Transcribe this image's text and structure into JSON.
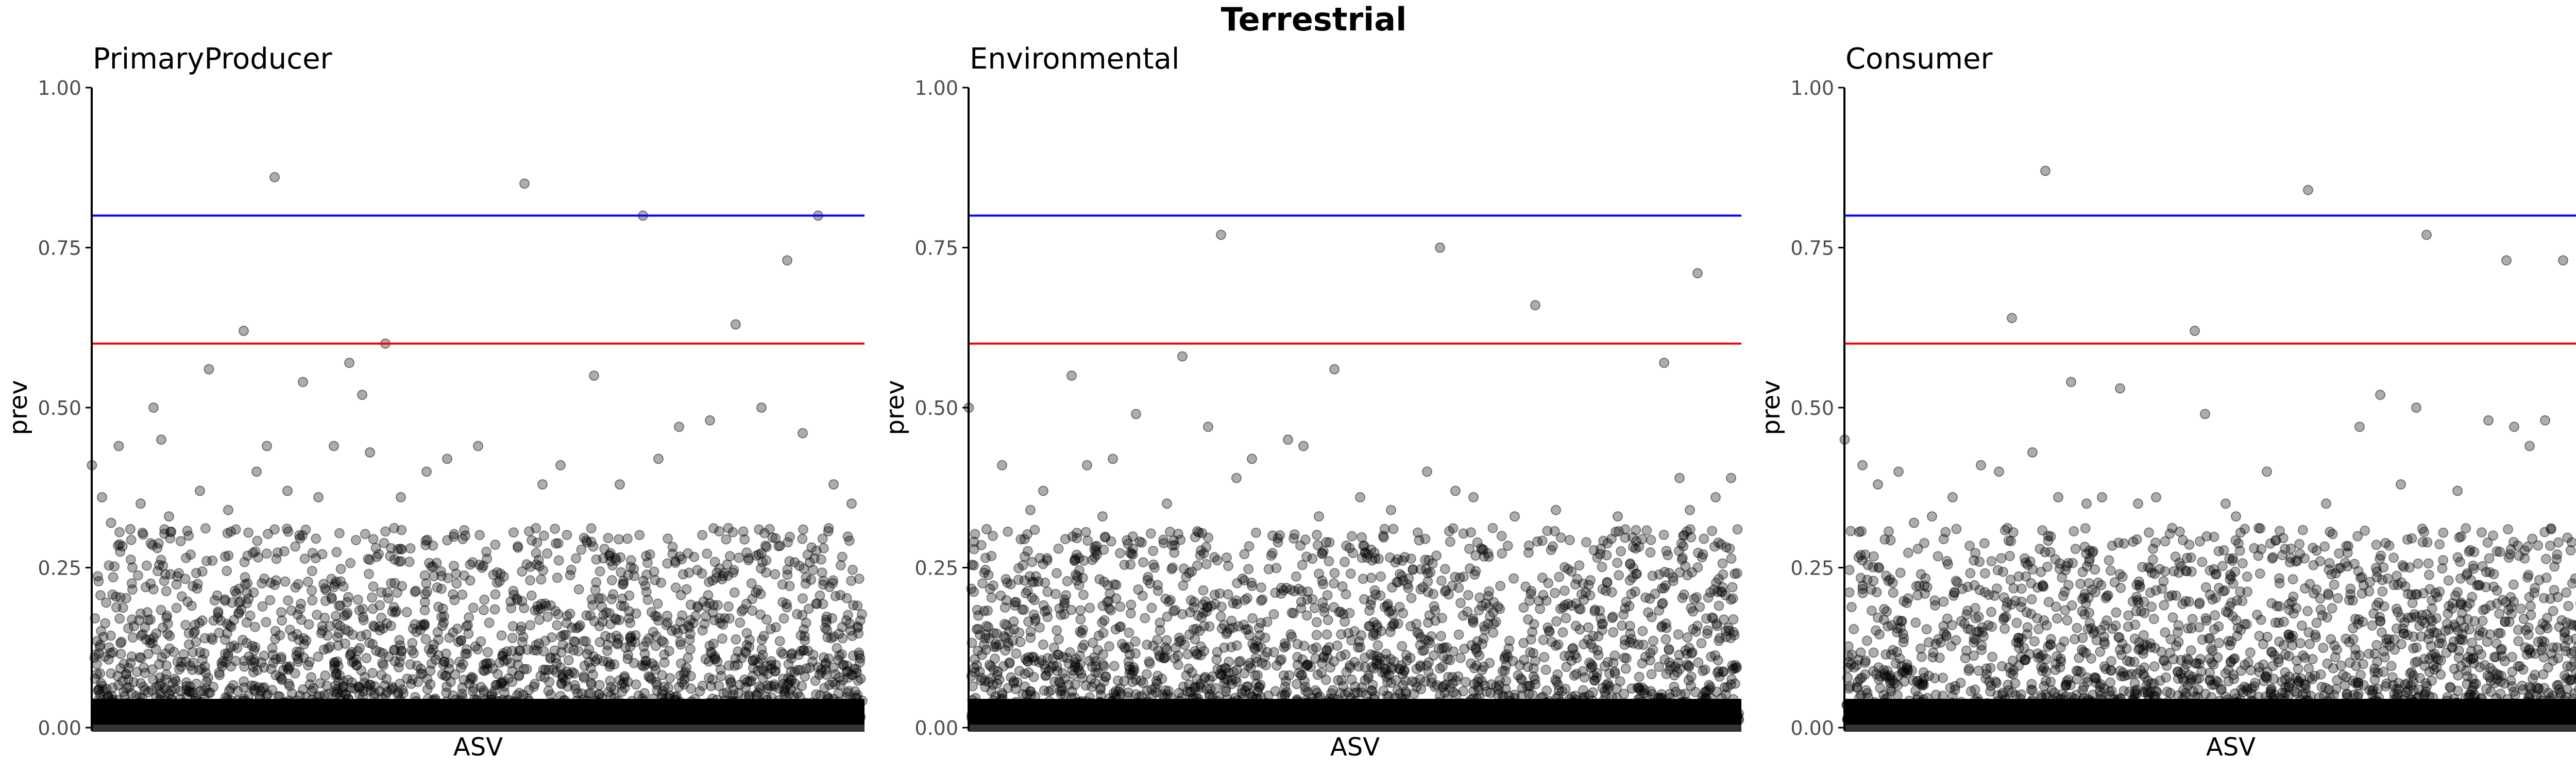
{
  "figure_title": "Terrestrial",
  "colors": {
    "upper_line": "#0000ff",
    "lower_line": "#ff0000",
    "points": "#000000",
    "axis": "#000000",
    "tick_text": "#4d4d4d"
  },
  "chart_data": [
    {
      "type": "scatter",
      "title": "PrimaryProducer",
      "xlabel": "ASV",
      "ylabel": "prev",
      "ylim": [
        0,
        1
      ],
      "yticks": [
        "0.00",
        "0.25",
        "0.50",
        "0.75",
        "1.00"
      ],
      "hlines": [
        0.8,
        0.6
      ],
      "grid": false,
      "n_asv": 3000,
      "outliers": [
        {
          "x": 1,
          "y": 0.41
        },
        {
          "x": 40,
          "y": 0.36
        },
        {
          "x": 75,
          "y": 0.32
        },
        {
          "x": 105,
          "y": 0.44
        },
        {
          "x": 150,
          "y": 0.31
        },
        {
          "x": 190,
          "y": 0.35
        },
        {
          "x": 240,
          "y": 0.5
        },
        {
          "x": 270,
          "y": 0.45
        },
        {
          "x": 300,
          "y": 0.33
        },
        {
          "x": 420,
          "y": 0.37
        },
        {
          "x": 455,
          "y": 0.56
        },
        {
          "x": 530,
          "y": 0.34
        },
        {
          "x": 590,
          "y": 0.62
        },
        {
          "x": 640,
          "y": 0.4
        },
        {
          "x": 680,
          "y": 0.44
        },
        {
          "x": 710,
          "y": 0.86
        },
        {
          "x": 760,
          "y": 0.37
        },
        {
          "x": 820,
          "y": 0.54
        },
        {
          "x": 880,
          "y": 0.36
        },
        {
          "x": 940,
          "y": 0.44
        },
        {
          "x": 1000,
          "y": 0.57
        },
        {
          "x": 1050,
          "y": 0.52
        },
        {
          "x": 1080,
          "y": 0.43
        },
        {
          "x": 1140,
          "y": 0.6
        },
        {
          "x": 1200,
          "y": 0.36
        },
        {
          "x": 1300,
          "y": 0.4
        },
        {
          "x": 1380,
          "y": 0.42
        },
        {
          "x": 1450,
          "y": 0.3
        },
        {
          "x": 1500,
          "y": 0.44
        },
        {
          "x": 1680,
          "y": 0.85
        },
        {
          "x": 1750,
          "y": 0.38
        },
        {
          "x": 1820,
          "y": 0.41
        },
        {
          "x": 1950,
          "y": 0.55
        },
        {
          "x": 2050,
          "y": 0.38
        },
        {
          "x": 2140,
          "y": 0.8
        },
        {
          "x": 2200,
          "y": 0.42
        },
        {
          "x": 2280,
          "y": 0.47
        },
        {
          "x": 2400,
          "y": 0.48
        },
        {
          "x": 2500,
          "y": 0.63
        },
        {
          "x": 2600,
          "y": 0.5
        },
        {
          "x": 2700,
          "y": 0.73
        },
        {
          "x": 2760,
          "y": 0.46
        },
        {
          "x": 2820,
          "y": 0.8
        },
        {
          "x": 2880,
          "y": 0.38
        },
        {
          "x": 2950,
          "y": 0.35
        }
      ]
    },
    {
      "type": "scatter",
      "title": "Environmental",
      "xlabel": "ASV",
      "ylabel": "prev",
      "ylim": [
        0,
        1
      ],
      "yticks": [
        "0.00",
        "0.25",
        "0.50",
        "0.75",
        "1.00"
      ],
      "hlines": [
        0.8,
        0.6
      ],
      "grid": false,
      "n_asv": 3000,
      "outliers": [
        {
          "x": 1,
          "y": 0.5
        },
        {
          "x": 70,
          "y": 0.31
        },
        {
          "x": 130,
          "y": 0.41
        },
        {
          "x": 240,
          "y": 0.34
        },
        {
          "x": 290,
          "y": 0.37
        },
        {
          "x": 400,
          "y": 0.55
        },
        {
          "x": 460,
          "y": 0.41
        },
        {
          "x": 520,
          "y": 0.33
        },
        {
          "x": 560,
          "y": 0.42
        },
        {
          "x": 650,
          "y": 0.49
        },
        {
          "x": 770,
          "y": 0.35
        },
        {
          "x": 830,
          "y": 0.58
        },
        {
          "x": 930,
          "y": 0.47
        },
        {
          "x": 980,
          "y": 0.77
        },
        {
          "x": 1040,
          "y": 0.39
        },
        {
          "x": 1100,
          "y": 0.42
        },
        {
          "x": 1180,
          "y": 0.3
        },
        {
          "x": 1240,
          "y": 0.45
        },
        {
          "x": 1300,
          "y": 0.44
        },
        {
          "x": 1360,
          "y": 0.33
        },
        {
          "x": 1420,
          "y": 0.56
        },
        {
          "x": 1520,
          "y": 0.36
        },
        {
          "x": 1640,
          "y": 0.34
        },
        {
          "x": 1780,
          "y": 0.4
        },
        {
          "x": 1830,
          "y": 0.75
        },
        {
          "x": 1890,
          "y": 0.37
        },
        {
          "x": 1960,
          "y": 0.36
        },
        {
          "x": 2120,
          "y": 0.33
        },
        {
          "x": 2200,
          "y": 0.66
        },
        {
          "x": 2280,
          "y": 0.34
        },
        {
          "x": 2520,
          "y": 0.33
        },
        {
          "x": 2700,
          "y": 0.57
        },
        {
          "x": 2760,
          "y": 0.39
        },
        {
          "x": 2800,
          "y": 0.34
        },
        {
          "x": 2830,
          "y": 0.71
        },
        {
          "x": 2900,
          "y": 0.36
        },
        {
          "x": 2960,
          "y": 0.39
        }
      ]
    },
    {
      "type": "scatter",
      "title": "Consumer",
      "xlabel": "ASV",
      "ylabel": "prev",
      "ylim": [
        0,
        1
      ],
      "yticks": [
        "0.00",
        "0.25",
        "0.50",
        "0.75",
        "1.00"
      ],
      "hlines": [
        0.8,
        0.6
      ],
      "grid": false,
      "n_asv": 3000,
      "outliers": [
        {
          "x": 1,
          "y": 0.45
        },
        {
          "x": 70,
          "y": 0.41
        },
        {
          "x": 130,
          "y": 0.38
        },
        {
          "x": 210,
          "y": 0.4
        },
        {
          "x": 270,
          "y": 0.32
        },
        {
          "x": 340,
          "y": 0.33
        },
        {
          "x": 420,
          "y": 0.36
        },
        {
          "x": 530,
          "y": 0.41
        },
        {
          "x": 600,
          "y": 0.4
        },
        {
          "x": 650,
          "y": 0.64
        },
        {
          "x": 730,
          "y": 0.43
        },
        {
          "x": 780,
          "y": 0.87
        },
        {
          "x": 830,
          "y": 0.36
        },
        {
          "x": 880,
          "y": 0.54
        },
        {
          "x": 940,
          "y": 0.35
        },
        {
          "x": 1000,
          "y": 0.36
        },
        {
          "x": 1070,
          "y": 0.53
        },
        {
          "x": 1140,
          "y": 0.35
        },
        {
          "x": 1210,
          "y": 0.36
        },
        {
          "x": 1360,
          "y": 0.62
        },
        {
          "x": 1400,
          "y": 0.49
        },
        {
          "x": 1480,
          "y": 0.35
        },
        {
          "x": 1520,
          "y": 0.33
        },
        {
          "x": 1640,
          "y": 0.4
        },
        {
          "x": 1800,
          "y": 0.84
        },
        {
          "x": 1870,
          "y": 0.35
        },
        {
          "x": 2000,
          "y": 0.47
        },
        {
          "x": 2080,
          "y": 0.52
        },
        {
          "x": 2160,
          "y": 0.38
        },
        {
          "x": 2220,
          "y": 0.5
        },
        {
          "x": 2260,
          "y": 0.77
        },
        {
          "x": 2380,
          "y": 0.37
        },
        {
          "x": 2500,
          "y": 0.48
        },
        {
          "x": 2570,
          "y": 0.73
        },
        {
          "x": 2600,
          "y": 0.47
        },
        {
          "x": 2660,
          "y": 0.44
        },
        {
          "x": 2720,
          "y": 0.48
        },
        {
          "x": 2790,
          "y": 0.73
        },
        {
          "x": 2880,
          "y": 0.43
        },
        {
          "x": 2960,
          "y": 0.4
        }
      ]
    }
  ]
}
